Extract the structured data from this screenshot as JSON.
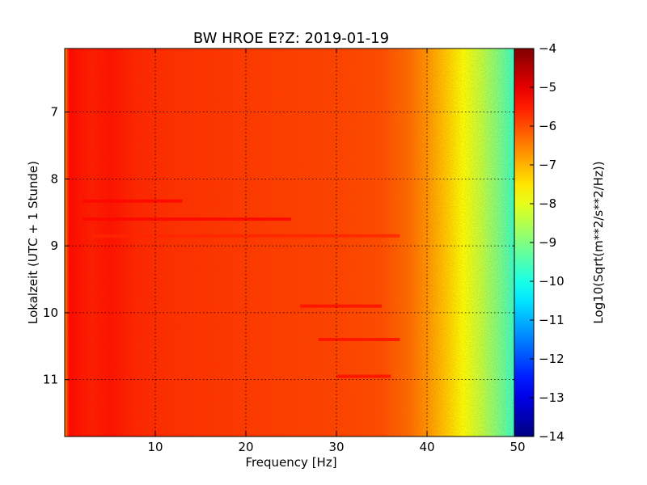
{
  "chart_data": {
    "type": "heatmap",
    "title": "BW HROE E?Z: 2019-01-19",
    "xlabel": "Frequency [Hz]",
    "ylabel": "Lokalzeit (UTC + 1 Stunde)",
    "xlim": [
      0,
      50
    ],
    "ylim": [
      11.85,
      6.05
    ],
    "x_ticks": [
      10,
      20,
      30,
      40,
      50
    ],
    "y_ticks": [
      7,
      8,
      9,
      10,
      11
    ],
    "grid": true,
    "colormap": "jet",
    "colorbar": {
      "label": "Log10(Sqrt(m**2/s**2/Hz))",
      "range": [
        -14,
        -4
      ],
      "ticks": [
        -4,
        -5,
        -6,
        -7,
        -8,
        -9,
        -10,
        -11,
        -12,
        -13,
        -14
      ]
    },
    "spectrum_profile": {
      "frequency_hz": [
        0,
        0.5,
        1.5,
        3,
        5,
        8,
        12,
        20,
        30,
        35,
        38,
        40,
        42,
        44,
        46,
        48,
        50
      ],
      "log_amplitude": [
        -6.7,
        -5.3,
        -5.4,
        -5.5,
        -5.4,
        -5.6,
        -5.7,
        -5.8,
        -5.9,
        -6.0,
        -6.3,
        -6.7,
        -7.2,
        -7.8,
        -8.4,
        -9.1,
        -9.9
      ]
    },
    "features": [
      {
        "kind": "horizontal-streak",
        "time": 8.33,
        "freq_range": [
          2,
          13
        ],
        "log_amplitude": -5.3
      },
      {
        "kind": "horizontal-streak",
        "time": 8.6,
        "freq_range": [
          2,
          25
        ],
        "log_amplitude": -5.3
      },
      {
        "kind": "horizontal-streak",
        "time": 9.9,
        "freq_range": [
          26,
          35
        ],
        "log_amplitude": -5.4
      },
      {
        "kind": "horizontal-streak",
        "time": 10.4,
        "freq_range": [
          28,
          37
        ],
        "log_amplitude": -5.4
      },
      {
        "kind": "horizontal-streak",
        "time": 10.95,
        "freq_range": [
          30,
          36
        ],
        "log_amplitude": -5.4
      },
      {
        "kind": "horizontal-streak",
        "time": 8.85,
        "freq_range": [
          3,
          37
        ],
        "log_amplitude": -5.6
      }
    ]
  }
}
